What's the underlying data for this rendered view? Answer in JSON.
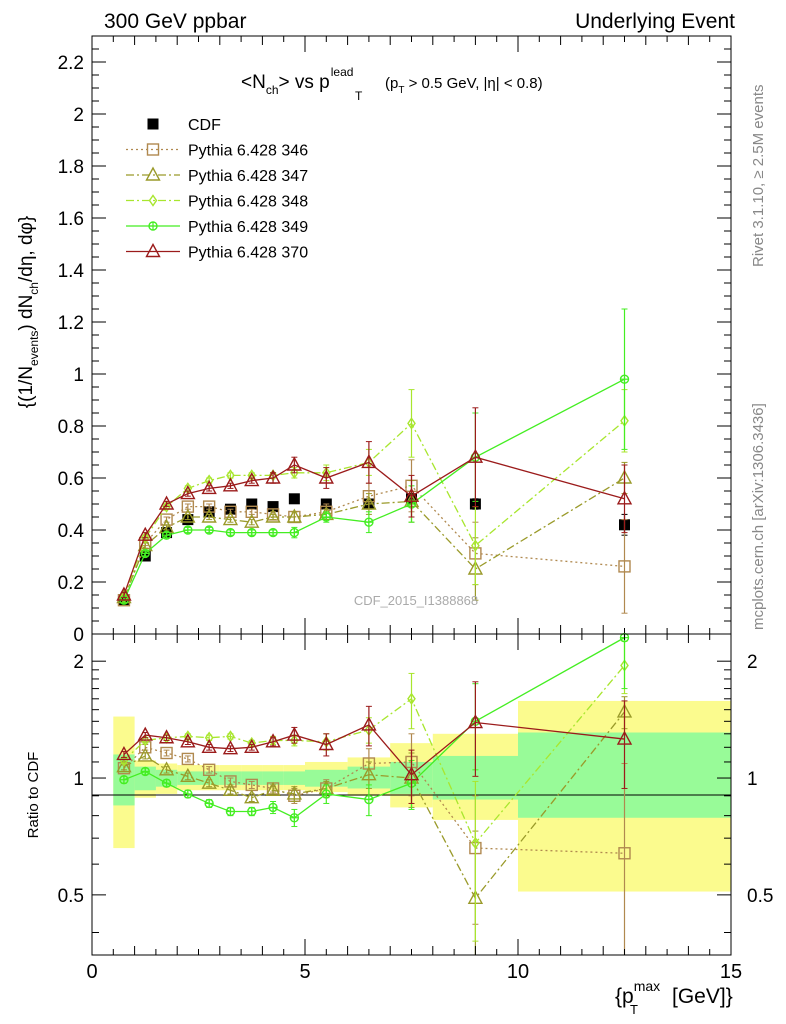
{
  "header": {
    "left": "300 GeV ppbar",
    "right": "Underlying Event"
  },
  "side": {
    "rivet": "Rivet 3.1.10, ≥ 2.5M events",
    "mcplots": "mcplots.cern.ch [arXiv:1306.3436]"
  },
  "watermark": "CDF_2015_I1388868",
  "chart_data": [
    {
      "type": "scatter",
      "title": "<N_ch> vs p_T^lead (p_T > 0.5 GeV, |η| < 0.8)",
      "title_parts": {
        "main": "<N",
        "main_sub": "ch",
        "vs": "> vs p",
        "lead_sup": "lead",
        "lead_sub": "T",
        "cut_open": "(p",
        "cut_sub": "T",
        "cut_rest": " > 0.5 GeV, |η| < 0.8)"
      },
      "ylabel": "{(1/N_events) dN_ch/dη, dφ}",
      "ylabel_parts": {
        "a": "{(1/N",
        "a_sub": "events",
        "b": ") dN",
        "b_sub": "ch",
        "c": "/dη, dφ}"
      },
      "xlim": [
        0,
        15
      ],
      "ylim": [
        0,
        2.3
      ],
      "yticks": [
        0,
        0.2,
        0.4,
        0.6,
        0.8,
        1,
        1.2,
        1.4,
        1.6,
        1.8,
        2,
        2.2
      ],
      "ytick_labels": [
        "0",
        "0.2",
        "0.4",
        "0.6",
        "0.8",
        "1",
        "1.2",
        "1.4",
        "1.6",
        "1.8",
        "2",
        "2.2"
      ],
      "legend_position": "top-left",
      "x": [
        0.75,
        1.25,
        1.75,
        2.25,
        2.75,
        3.25,
        3.75,
        4.25,
        4.75,
        5.5,
        6.5,
        7.5,
        9.0,
        12.5
      ],
      "series": [
        {
          "name": "CDF",
          "color": "#000000",
          "marker": "square-filled",
          "line": "none",
          "values": [
            0.13,
            0.3,
            0.39,
            0.44,
            0.47,
            0.48,
            0.5,
            0.49,
            0.52,
            0.5,
            0.5,
            0.52,
            0.5,
            0.42
          ],
          "errors": [
            0.01,
            0.01,
            0.01,
            0.01,
            0.01,
            0.01,
            0.01,
            0.01,
            0.01,
            0.01,
            0.01,
            0.02,
            0.02,
            0.04
          ]
        },
        {
          "name": "Pythia 6.428 346",
          "color": "#b0894f",
          "marker": "square-open",
          "line": "dotted",
          "values": [
            0.13,
            0.35,
            0.44,
            0.49,
            0.49,
            0.47,
            0.47,
            0.46,
            0.45,
            0.47,
            0.53,
            0.57,
            0.31,
            0.26
          ],
          "errors": [
            0.01,
            0.01,
            0.01,
            0.01,
            0.01,
            0.01,
            0.01,
            0.01,
            0.02,
            0.03,
            0.05,
            0.1,
            0.12,
            0.18
          ]
        },
        {
          "name": "Pythia 6.428 347",
          "color": "#9a9a2a",
          "marker": "triangle-open",
          "line": "dashdot",
          "values": [
            0.14,
            0.34,
            0.41,
            0.45,
            0.45,
            0.44,
            0.43,
            0.45,
            0.45,
            0.46,
            0.5,
            0.51,
            0.25,
            0.6
          ],
          "errors": [
            0.01,
            0.01,
            0.01,
            0.01,
            0.01,
            0.01,
            0.01,
            0.01,
            0.02,
            0.02,
            0.04,
            0.08,
            0.12,
            0.06
          ]
        },
        {
          "name": "Pythia 6.428 348",
          "color": "#a8e62e",
          "marker": "diamond-open",
          "line": "dashdot",
          "values": [
            0.14,
            0.37,
            0.49,
            0.56,
            0.59,
            0.61,
            0.61,
            0.61,
            0.62,
            0.62,
            0.66,
            0.81,
            0.34,
            0.82
          ],
          "errors": [
            0.01,
            0.01,
            0.01,
            0.01,
            0.01,
            0.01,
            0.01,
            0.01,
            0.02,
            0.03,
            0.05,
            0.13,
            0.15,
            0.12
          ]
        },
        {
          "name": "Pythia 6.428 349",
          "color": "#44ee22",
          "marker": "circle-cross",
          "line": "solid",
          "values": [
            0.13,
            0.31,
            0.38,
            0.4,
            0.4,
            0.39,
            0.39,
            0.39,
            0.39,
            0.45,
            0.43,
            0.5,
            0.68,
            0.98
          ],
          "errors": [
            0.01,
            0.01,
            0.01,
            0.01,
            0.01,
            0.01,
            0.01,
            0.01,
            0.02,
            0.02,
            0.04,
            0.07,
            0.17,
            0.27
          ]
        },
        {
          "name": "Pythia 6.428 370",
          "color": "#9b1b1b",
          "marker": "triangle-open",
          "line": "solid",
          "values": [
            0.15,
            0.38,
            0.5,
            0.54,
            0.56,
            0.57,
            0.59,
            0.6,
            0.65,
            0.6,
            0.66,
            0.53,
            0.68,
            0.52
          ],
          "errors": [
            0.01,
            0.01,
            0.01,
            0.01,
            0.01,
            0.01,
            0.01,
            0.02,
            0.03,
            0.04,
            0.08,
            0.08,
            0.19,
            0.13
          ]
        }
      ]
    },
    {
      "type": "scatter",
      "ylabel": "Ratio to CDF",
      "xlabel": "{p_T^max [GeV]}",
      "xlabel_parts": {
        "a": "{p",
        "sup": "max",
        "sub": "T",
        "b": " [GeV]}"
      },
      "xlim": [
        0,
        15
      ],
      "ylim": [
        0.35,
        2.35
      ],
      "xticks": [
        0,
        5,
        10,
        15
      ],
      "xtick_labels": [
        "0",
        "5",
        "10",
        "15"
      ],
      "yticks": [
        0.5,
        1,
        2
      ],
      "ytick_labels": [
        "0.5",
        "1",
        "2"
      ],
      "bands": {
        "edges": [
          0.5,
          1.0,
          1.5,
          2.0,
          2.5,
          3.0,
          3.5,
          4.0,
          4.5,
          5.0,
          6.0,
          7.0,
          8.0,
          10.0,
          15.0
        ],
        "stat_low": [
          0.85,
          0.93,
          0.95,
          0.96,
          0.96,
          0.96,
          0.96,
          0.96,
          0.96,
          0.95,
          0.94,
          0.91,
          0.88,
          0.79
        ],
        "stat_high": [
          1.15,
          1.07,
          1.05,
          1.04,
          1.04,
          1.04,
          1.04,
          1.04,
          1.04,
          1.05,
          1.07,
          1.1,
          1.14,
          1.31
        ],
        "total_low": [
          0.66,
          0.89,
          0.91,
          0.93,
          0.93,
          0.93,
          0.93,
          0.93,
          0.93,
          0.92,
          0.9,
          0.84,
          0.78,
          0.51
        ],
        "total_high": [
          1.44,
          1.11,
          1.09,
          1.08,
          1.08,
          1.08,
          1.08,
          1.08,
          1.08,
          1.1,
          1.13,
          1.23,
          1.3,
          1.58
        ]
      },
      "series": [
        {
          "name": "Pythia 6.428 346",
          "color": "#b0894f",
          "marker": "square-open",
          "line": "dotted",
          "values": [
            1.06,
            1.2,
            1.16,
            1.12,
            1.05,
            0.98,
            0.96,
            0.94,
            0.9,
            0.94,
            1.09,
            1.1,
            0.66,
            0.64
          ],
          "errors": [
            0.02,
            0.02,
            0.02,
            0.02,
            0.02,
            0.02,
            0.02,
            0.02,
            0.04,
            0.05,
            0.1,
            0.2,
            0.24,
            0.45
          ]
        },
        {
          "name": "Pythia 6.428 347",
          "color": "#9a9a2a",
          "marker": "triangle-open",
          "line": "dashdot",
          "values": [
            1.07,
            1.14,
            1.05,
            1.01,
            0.97,
            0.93,
            0.89,
            0.93,
            0.91,
            0.94,
            1.02,
            1.0,
            0.49,
            1.48
          ],
          "errors": [
            0.02,
            0.02,
            0.02,
            0.02,
            0.02,
            0.02,
            0.02,
            0.02,
            0.04,
            0.04,
            0.08,
            0.16,
            0.24,
            0.14
          ]
        },
        {
          "name": "Pythia 6.428 348",
          "color": "#a8e62e",
          "marker": "diamond-open",
          "line": "dashdot",
          "values": [
            1.11,
            1.25,
            1.27,
            1.28,
            1.27,
            1.28,
            1.23,
            1.25,
            1.25,
            1.24,
            1.33,
            1.6,
            0.68,
            1.95
          ],
          "errors": [
            0.02,
            0.02,
            0.02,
            0.02,
            0.02,
            0.02,
            0.02,
            0.03,
            0.04,
            0.06,
            0.1,
            0.26,
            0.3,
            0.3
          ]
        },
        {
          "name": "Pythia 6.428 349",
          "color": "#44ee22",
          "marker": "circle-cross",
          "line": "solid",
          "values": [
            0.99,
            1.04,
            0.97,
            0.91,
            0.86,
            0.82,
            0.82,
            0.84,
            0.79,
            0.91,
            0.88,
            0.97,
            1.4,
            2.3
          ],
          "errors": [
            0.02,
            0.02,
            0.02,
            0.02,
            0.02,
            0.02,
            0.02,
            0.03,
            0.04,
            0.05,
            0.08,
            0.14,
            0.35,
            0.6
          ]
        },
        {
          "name": "Pythia 6.428 370",
          "color": "#9b1b1b",
          "marker": "triangle-open",
          "line": "solid",
          "values": [
            1.15,
            1.29,
            1.27,
            1.24,
            1.2,
            1.19,
            1.2,
            1.24,
            1.29,
            1.22,
            1.37,
            1.02,
            1.39,
            1.26
          ],
          "errors": [
            0.02,
            0.02,
            0.02,
            0.02,
            0.02,
            0.02,
            0.02,
            0.03,
            0.06,
            0.08,
            0.16,
            0.16,
            0.38,
            0.32
          ]
        }
      ]
    }
  ]
}
